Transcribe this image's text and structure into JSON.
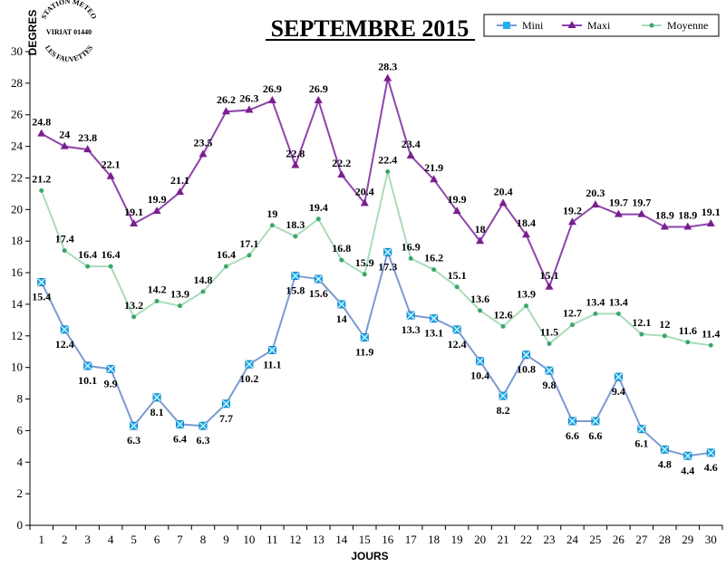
{
  "chart_data": {
    "type": "line",
    "title": "SEPTEMBRE 2015",
    "xlabel": "JOURS",
    "ylabel": "DEGRES",
    "ylim": [
      0,
      30
    ],
    "ytick_step": 2,
    "x": [
      1,
      2,
      3,
      4,
      5,
      6,
      7,
      8,
      9,
      10,
      11,
      12,
      13,
      14,
      15,
      16,
      17,
      18,
      19,
      20,
      21,
      22,
      23,
      24,
      25,
      26,
      27,
      28,
      29,
      30
    ],
    "legend_position": "top-right",
    "series": [
      {
        "name": "Mini",
        "color": "#7b9bd1",
        "marker_color": "#1fb0ee",
        "marker": "square",
        "values": [
          15.4,
          12.4,
          10.1,
          9.9,
          6.3,
          8.1,
          6.4,
          6.3,
          7.7,
          10.2,
          11.1,
          15.8,
          15.6,
          14,
          11.9,
          17.3,
          13.3,
          13.1,
          12.4,
          10.4,
          8.2,
          10.8,
          9.8,
          6.6,
          6.6,
          9.4,
          6.1,
          4.8,
          4.4,
          4.6
        ]
      },
      {
        "name": "Maxi",
        "color": "#8e44ad",
        "marker_color": "#7a1f8f",
        "marker": "triangle",
        "values": [
          24.8,
          24,
          23.8,
          22.1,
          19.1,
          19.9,
          21.1,
          23.5,
          26.2,
          26.3,
          26.9,
          22.8,
          26.9,
          22.2,
          20.4,
          28.3,
          23.4,
          21.9,
          19.9,
          18,
          20.4,
          18.4,
          15.1,
          19.2,
          20.3,
          19.7,
          19.7,
          18.9,
          18.9,
          19.1
        ]
      },
      {
        "name": "Moyenne",
        "color": "#a9dcb8",
        "marker_color": "#3aa86a",
        "marker": "dot",
        "values": [
          21.2,
          17.4,
          16.4,
          16.4,
          13.2,
          14.2,
          13.9,
          14.8,
          16.4,
          17.1,
          19,
          18.3,
          19.4,
          16.8,
          15.9,
          22.4,
          16.9,
          16.2,
          15.1,
          13.6,
          12.6,
          13.9,
          11.5,
          12.7,
          13.4,
          13.4,
          12.1,
          12,
          11.6,
          11.4
        ]
      }
    ]
  },
  "stamp": {
    "top_text": "STATION METEO",
    "middle_text": "VIRIAT 01440",
    "bottom_text": "LES FAUVETTES"
  }
}
